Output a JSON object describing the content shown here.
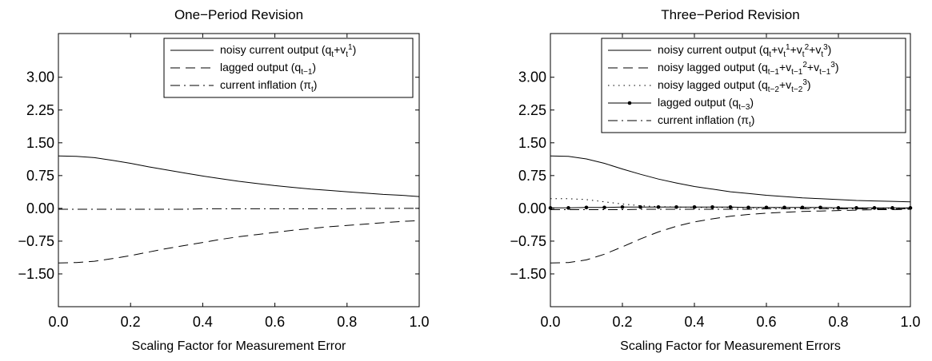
{
  "chart_data": [
    {
      "type": "line",
      "title": "One−Period Revision",
      "xlabel": "Scaling Factor for Measurement Error",
      "ylabel": "",
      "xlim": [
        0,
        1
      ],
      "ylim": [
        -2.25,
        4.0
      ],
      "xticks": [
        0.0,
        0.2,
        0.4,
        0.6,
        0.8,
        1.0
      ],
      "xtick_labels": [
        "0.0",
        "0.2",
        "0.4",
        "0.6",
        "0.8",
        "1.0"
      ],
      "yticks": [
        -1.5,
        -0.75,
        0.0,
        0.75,
        1.5,
        2.25,
        3.0
      ],
      "ytick_labels": [
        "−1.50",
        "−0.75",
        "0.00",
        "0.75",
        "1.50",
        "2.25",
        "3.00"
      ],
      "legend_position": "top-right",
      "x": [
        0.0,
        0.05,
        0.1,
        0.15,
        0.2,
        0.25,
        0.3,
        0.35,
        0.4,
        0.45,
        0.5,
        0.55,
        0.6,
        0.65,
        0.7,
        0.75,
        0.8,
        0.85,
        0.9,
        0.95,
        1.0
      ],
      "series": [
        {
          "style": "solid",
          "legend": {
            "pre": "noisy current output (q",
            "parts": [
              {
                "t": "t",
                "k": "sub"
              },
              {
                "t": "+v",
                "k": "n"
              },
              {
                "t": "t",
                "k": "sub"
              },
              {
                "t": "1",
                "k": "sup"
              },
              {
                "t": ")",
                "k": "n"
              }
            ]
          },
          "values": [
            1.2,
            1.19,
            1.16,
            1.1,
            1.03,
            0.95,
            0.88,
            0.81,
            0.74,
            0.68,
            0.62,
            0.57,
            0.52,
            0.48,
            0.44,
            0.41,
            0.38,
            0.35,
            0.32,
            0.3,
            0.27
          ]
        },
        {
          "style": "dashed",
          "legend": {
            "pre": "lagged output (q",
            "parts": [
              {
                "t": "t−1",
                "k": "sub"
              },
              {
                "t": ")",
                "k": "n"
              }
            ]
          },
          "values": [
            -1.25,
            -1.24,
            -1.21,
            -1.15,
            -1.08,
            -1.0,
            -0.92,
            -0.85,
            -0.78,
            -0.71,
            -0.65,
            -0.6,
            -0.55,
            -0.5,
            -0.46,
            -0.42,
            -0.39,
            -0.36,
            -0.33,
            -0.3,
            -0.28
          ]
        },
        {
          "style": "dashdot",
          "legend": {
            "pre": "current inflation (π",
            "parts": [
              {
                "t": "t",
                "k": "sub"
              },
              {
                "t": ")",
                "k": "n"
              }
            ]
          },
          "values": [
            -0.02,
            -0.02,
            -0.02,
            -0.02,
            -0.02,
            -0.02,
            -0.02,
            -0.02,
            -0.01,
            -0.01,
            -0.01,
            -0.01,
            -0.01,
            -0.01,
            -0.01,
            -0.01,
            -0.01,
            0.0,
            0.0,
            0.0,
            0.0
          ]
        }
      ]
    },
    {
      "type": "line",
      "title": "Three−Period Revision",
      "xlabel": "Scaling Factor for Measurement Errors",
      "ylabel": "",
      "xlim": [
        0,
        1
      ],
      "ylim": [
        -2.25,
        4.0
      ],
      "xticks": [
        0.0,
        0.2,
        0.4,
        0.6,
        0.8,
        1.0
      ],
      "xtick_labels": [
        "0.0",
        "0.2",
        "0.4",
        "0.6",
        "0.8",
        "1.0"
      ],
      "yticks": [
        -1.5,
        -0.75,
        0.0,
        0.75,
        1.5,
        2.25,
        3.0
      ],
      "ytick_labels": [
        "−1.50",
        "−0.75",
        "0.00",
        "0.75",
        "1.50",
        "2.25",
        "3.00"
      ],
      "legend_position": "top-right",
      "x": [
        0.0,
        0.05,
        0.1,
        0.15,
        0.2,
        0.25,
        0.3,
        0.35,
        0.4,
        0.45,
        0.5,
        0.55,
        0.6,
        0.65,
        0.7,
        0.75,
        0.8,
        0.85,
        0.9,
        0.95,
        1.0
      ],
      "series": [
        {
          "style": "solid",
          "legend": {
            "pre": "noisy current output (q",
            "parts": [
              {
                "t": "t",
                "k": "sub"
              },
              {
                "t": "+v",
                "k": "n"
              },
              {
                "t": "t",
                "k": "sub"
              },
              {
                "t": "1",
                "k": "sup"
              },
              {
                "t": "+v",
                "k": "n"
              },
              {
                "t": "t",
                "k": "sub"
              },
              {
                "t": "2",
                "k": "sup"
              },
              {
                "t": "+v",
                "k": "n"
              },
              {
                "t": "t",
                "k": "sub"
              },
              {
                "t": "3",
                "k": "sup"
              },
              {
                "t": ")",
                "k": "n"
              }
            ]
          },
          "values": [
            1.2,
            1.19,
            1.13,
            1.03,
            0.9,
            0.78,
            0.67,
            0.58,
            0.5,
            0.44,
            0.38,
            0.34,
            0.3,
            0.27,
            0.24,
            0.22,
            0.2,
            0.18,
            0.17,
            0.16,
            0.15
          ]
        },
        {
          "style": "dashed",
          "legend": {
            "pre": "noisy lagged output (q",
            "parts": [
              {
                "t": "t−1",
                "k": "sub"
              },
              {
                "t": "+v",
                "k": "n"
              },
              {
                "t": "t−1",
                "k": "sub"
              },
              {
                "t": "2",
                "k": "sup"
              },
              {
                "t": "+v",
                "k": "n"
              },
              {
                "t": "t−1",
                "k": "sub"
              },
              {
                "t": "3",
                "k": "sup"
              },
              {
                "t": ")",
                "k": "n"
              }
            ]
          },
          "values": [
            -1.25,
            -1.24,
            -1.18,
            -1.05,
            -0.88,
            -0.7,
            -0.54,
            -0.41,
            -0.31,
            -0.24,
            -0.18,
            -0.14,
            -0.11,
            -0.09,
            -0.07,
            -0.06,
            -0.05,
            -0.04,
            -0.03,
            -0.03,
            -0.02
          ]
        },
        {
          "style": "dotted",
          "legend": {
            "pre": "noisy lagged output (q",
            "parts": [
              {
                "t": "t−2",
                "k": "sub"
              },
              {
                "t": "+v",
                "k": "n"
              },
              {
                "t": "t−2",
                "k": "sub"
              },
              {
                "t": "3",
                "k": "sup"
              },
              {
                "t": ")",
                "k": "n"
              }
            ]
          },
          "values": [
            0.22,
            0.22,
            0.2,
            0.15,
            0.1,
            0.06,
            0.04,
            0.03,
            0.02,
            0.02,
            0.02,
            0.01,
            0.01,
            0.01,
            0.01,
            0.01,
            0.01,
            0.0,
            0.0,
            0.0,
            0.0
          ]
        },
        {
          "style": "solid-marker",
          "legend": {
            "pre": "lagged output (q",
            "parts": [
              {
                "t": "t−3",
                "k": "sub"
              },
              {
                "t": ")",
                "k": "n"
              }
            ]
          },
          "values": [
            0.01,
            0.01,
            0.02,
            0.02,
            0.03,
            0.03,
            0.03,
            0.03,
            0.03,
            0.03,
            0.03,
            0.02,
            0.02,
            0.02,
            0.02,
            0.02,
            0.01,
            0.01,
            0.01,
            0.01,
            0.01
          ]
        },
        {
          "style": "dashdot",
          "legend": {
            "pre": "current inflation (π",
            "parts": [
              {
                "t": "t",
                "k": "sub"
              },
              {
                "t": ")",
                "k": "n"
              }
            ]
          },
          "values": [
            -0.03,
            -0.03,
            -0.03,
            -0.03,
            -0.03,
            -0.02,
            -0.02,
            -0.02,
            -0.02,
            -0.02,
            -0.02,
            -0.02,
            -0.01,
            -0.01,
            -0.01,
            -0.01,
            -0.01,
            -0.01,
            -0.01,
            -0.01,
            -0.01
          ]
        }
      ]
    }
  ]
}
